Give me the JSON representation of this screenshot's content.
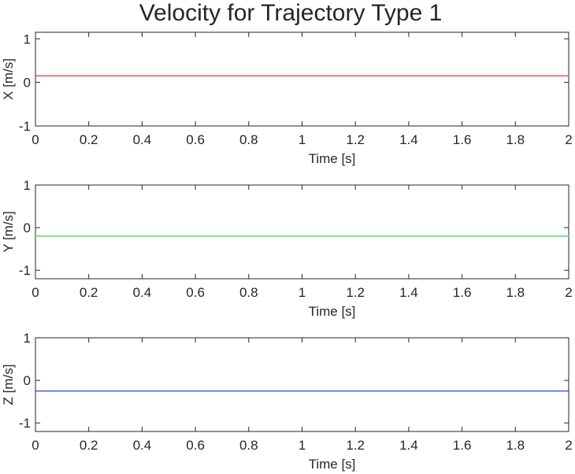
{
  "figure": {
    "title": "Velocity for Trajectory Type 1"
  },
  "chart_data": [
    {
      "type": "line",
      "title": "",
      "xlabel": "Time [s]",
      "ylabel": "X [m/s]",
      "xlim": [
        0,
        2
      ],
      "ylim": [
        -1,
        1.15
      ],
      "xticks": [
        0,
        0.2,
        0.4,
        0.6,
        0.8,
        1,
        1.2,
        1.4,
        1.6,
        1.8,
        2
      ],
      "yticks": [
        -1,
        0,
        1
      ],
      "grid": false,
      "series": [
        {
          "color": "#e8393a",
          "x": [
            0,
            2
          ],
          "y": [
            0.15,
            0.15
          ]
        }
      ]
    },
    {
      "type": "line",
      "title": "",
      "xlabel": "Time [s]",
      "ylabel": "Y [m/s]",
      "xlim": [
        0,
        2
      ],
      "ylim": [
        -1.2,
        1
      ],
      "xticks": [
        0,
        0.2,
        0.4,
        0.6,
        0.8,
        1,
        1.2,
        1.4,
        1.6,
        1.8,
        2
      ],
      "yticks": [
        -1,
        0,
        1
      ],
      "grid": false,
      "series": [
        {
          "color": "#7be38a",
          "x": [
            0,
            2
          ],
          "y": [
            -0.2,
            -0.2
          ]
        }
      ]
    },
    {
      "type": "line",
      "title": "",
      "xlabel": "Time [s]",
      "ylabel": "Z [m/s]",
      "xlim": [
        0,
        2
      ],
      "ylim": [
        -1.2,
        1
      ],
      "xticks": [
        0,
        0.2,
        0.4,
        0.6,
        0.8,
        1,
        1.2,
        1.4,
        1.6,
        1.8,
        2
      ],
      "yticks": [
        -1,
        0,
        1
      ],
      "grid": false,
      "series": [
        {
          "color": "#2b44e0",
          "x": [
            0,
            2
          ],
          "y": [
            -0.25,
            -0.25
          ]
        }
      ]
    }
  ]
}
